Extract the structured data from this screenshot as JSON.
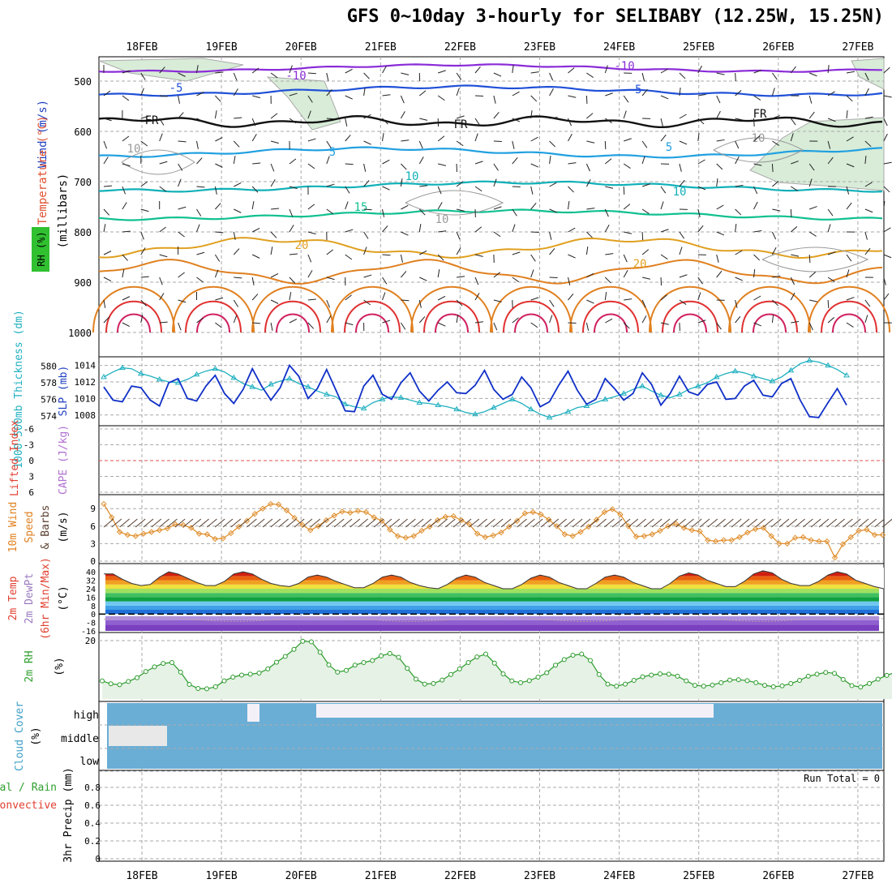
{
  "title": "GFS 0~10day 3-hourly for SELIBABY (12.25W, 15.25N)",
  "dates": [
    "18FEB",
    "19FEB",
    "20FEB",
    "21FEB",
    "22FEB",
    "23FEB",
    "24FEB",
    "25FEB",
    "26FEB",
    "27FEB"
  ],
  "colors": {
    "grid": "#999999",
    "rh_fill": "#d8ecd8",
    "temp_line": "#e04020",
    "cloud": "#6aaed6",
    "rh2m_line": "#2a9a2a",
    "dewpt": "#9a7ac0"
  },
  "panel1": {
    "ylabel_wind": "Wind (m/s)",
    "ylabel_temp": "Temperature (°C)",
    "ylabel_units": "(millibars)",
    "rh_badge": "RH (%)",
    "pressure_ticks": [
      "500",
      "600",
      "700",
      "800",
      "900",
      "1000"
    ],
    "contour_labels": [
      "-10",
      "-10",
      "-5",
      "-5",
      "FR",
      "FR",
      "FR",
      "5",
      "5",
      "10",
      "10",
      "15",
      "20",
      "20",
      "10",
      "10",
      "10"
    ]
  },
  "panel2": {
    "ylabel_thick": "1000-500mb Thickness (dm)",
    "ylabel_slp": "SLP (mb)",
    "thick_ticks": [
      "580",
      "578",
      "576",
      "574"
    ],
    "slp_ticks": [
      "1014",
      "1012",
      "1010",
      "1008"
    ]
  },
  "panel3": {
    "ylabel_li": "Lifted Index",
    "ylabel_cape": "CAPE (J/kg)",
    "ticks": [
      "-6",
      "-3",
      "0",
      "3",
      "6"
    ]
  },
  "panel4": {
    "ylabel": "10m Wind Speed & Barbs (m/s)",
    "ylabel_parts": [
      "10m Wind",
      "Speed",
      "& Barbs",
      "(m/s)"
    ],
    "ticks": [
      "9",
      "6",
      "3",
      "0"
    ]
  },
  "panel5": {
    "ylabel_parts": [
      "2m Temp",
      "2m DewPt",
      "(6hr Min/Max)",
      "(°C)"
    ],
    "ticks": [
      "40",
      "32",
      "24",
      "16",
      "8",
      "0",
      "-8",
      "-16"
    ]
  },
  "panel6": {
    "ylabel": "2m RH",
    "unit": "(%)",
    "ticks": [
      "20"
    ]
  },
  "panel7": {
    "ylabel": "Cloud Cover",
    "unit": "(%)",
    "levels": [
      "high",
      "middle",
      "low"
    ]
  },
  "panel8": {
    "ylabel_a": "Total / Rain",
    "ylabel_b": "Convective",
    "ylabel_c": "3hr Precip (mm)",
    "ticks": [
      "0.8",
      "0.6",
      "0.4",
      "0.2",
      "0"
    ],
    "run_total": "Run Total = 0"
  },
  "chart_data": [
    {
      "type": "line",
      "title": "1000-500mb Thickness (dm) / SLP (mb)",
      "x_labels": [
        "18FEB",
        "19FEB",
        "20FEB",
        "21FEB",
        "22FEB",
        "23FEB",
        "24FEB",
        "25FEB",
        "26FEB",
        "27FEB"
      ],
      "series": [
        {
          "name": "SLP (mb)",
          "values": [
            1011.4,
            1009.8,
            1009.6,
            1011.5,
            1011.3,
            1009.8,
            1009.1,
            1011.9,
            1012.4,
            1010.0,
            1009.7,
            1011.5,
            1012.8,
            1010.6,
            1009.4,
            1011.1,
            1013.6,
            1011.5,
            1009.8,
            1011.3,
            1014.0,
            1012.7,
            1010.0,
            1011.2,
            1013.5,
            1011.0,
            1008.5,
            1008.4,
            1011.5,
            1012.8,
            1010.5,
            1009.9,
            1011.9,
            1013.1,
            1010.9,
            1009.7,
            1011.0,
            1012.0,
            1010.7,
            1010.6,
            1011.6,
            1013.4,
            1011.1,
            1009.9,
            1010.5,
            1012.6,
            1011.3,
            1009.0,
            1009.6,
            1011.6,
            1013.3,
            1011.0,
            1009.3,
            1009.9,
            1012.4,
            1011.2,
            1009.8,
            1010.6,
            1013.1,
            1011.7,
            1009.2,
            1010.6,
            1012.7,
            1010.8,
            1010.4,
            1011.7,
            1012.0,
            1009.9,
            1010.0,
            1011.5,
            1012.2,
            1010.4,
            1010.2,
            1011.8,
            1012.4,
            1009.8,
            1007.8,
            1007.7,
            1009.5,
            1011.2,
            1009.2
          ]
        },
        {
          "name": "1000-500mb Thickness (dm)",
          "values": [
            578.7,
            579.3,
            579.8,
            579.7,
            579.1,
            578.8,
            578.4,
            578.1,
            578.0,
            578.4,
            579.0,
            579.4,
            579.7,
            579.3,
            578.6,
            577.9,
            577.5,
            577.1,
            577.8,
            578.2,
            578.5,
            577.9,
            577.5,
            577.0,
            576.6,
            576.3,
            575.4,
            575.1,
            574.9,
            575.6,
            576.0,
            576.3,
            576.2,
            575.9,
            575.6,
            575.5,
            575.3,
            575.1,
            574.8,
            574.4,
            574.2,
            574.5,
            575.0,
            575.5,
            576.0,
            575.5,
            574.8,
            574.2,
            573.8,
            574.1,
            574.5,
            575.0,
            575.2,
            575.6,
            576.0,
            576.3,
            576.7,
            577.2,
            577.6,
            577.0,
            576.5,
            576.2,
            576.6,
            577.2,
            577.6,
            578.0,
            578.7,
            579.1,
            579.4,
            579.2,
            578.8,
            578.5,
            578.2,
            578.7,
            579.5,
            580.3,
            580.7,
            580.5,
            580.1,
            579.6,
            578.9
          ]
        }
      ],
      "ylim_slp": [
        1007,
        1015
      ],
      "ylim_thickness": [
        573,
        581
      ]
    },
    {
      "type": "line",
      "title": "10m Wind Speed (m/s)",
      "series": [
        {
          "name": "10m Wind Speed",
          "values": [
            9.8,
            7.5,
            5.0,
            4.5,
            4.3,
            4.7,
            5.0,
            5.3,
            5.6,
            6.3,
            6.2,
            5.7,
            4.7,
            4.6,
            3.8,
            3.9,
            4.8,
            5.9,
            6.9,
            8.1,
            9.0,
            9.8,
            9.7,
            8.7,
            7.4,
            6.2,
            5.3,
            6.0,
            7.0,
            7.8,
            8.5,
            8.3,
            8.6,
            8.4,
            7.5,
            6.9,
            5.4,
            4.3,
            4.0,
            4.3,
            5.2,
            5.9,
            7.0,
            7.6,
            7.7,
            7.0,
            6.3,
            4.7,
            4.1,
            4.4,
            4.9,
            5.9,
            6.9,
            8.2,
            8.4,
            8.0,
            7.1,
            6.0,
            4.6,
            4.3,
            5.0,
            5.9,
            7.1,
            8.4,
            8.9,
            8.0,
            6.0,
            4.2,
            4.3,
            4.6,
            5.2,
            6.0,
            6.4,
            5.7,
            5.3,
            5.1,
            3.6,
            3.4,
            3.6,
            3.6,
            4.1,
            4.9,
            5.5,
            5.7,
            4.3,
            3.0,
            3.0,
            4.0,
            4.1,
            3.6,
            3.4,
            3.4,
            0.6,
            2.9,
            4.1,
            5.2,
            5.4,
            4.5,
            4.5
          ]
        }
      ],
      "ylim": [
        0,
        10
      ]
    },
    {
      "type": "area",
      "title": "2m RH (%)",
      "series": [
        {
          "name": "2m RH",
          "values": [
            6.2,
            5.2,
            4.9,
            6.0,
            7.3,
            9.4,
            11.0,
            12.2,
            12.5,
            9.2,
            5.0,
            3.6,
            3.5,
            4.2,
            6.2,
            7.5,
            8.2,
            8.5,
            8.9,
            10.3,
            12.6,
            14.6,
            17.0,
            19.8,
            19.6,
            16.0,
            11.7,
            9.2,
            9.8,
            11.6,
            12.5,
            13.2,
            14.8,
            15.6,
            14.3,
            10.5,
            6.8,
            5.1,
            5.3,
            6.5,
            8.4,
            10.3,
            12.5,
            14.4,
            15.4,
            12.3,
            8.6,
            6.2,
            5.6,
            6.3,
            7.5,
            9.0,
            11.6,
            13.5,
            15.0,
            15.4,
            13.2,
            8.4,
            5.1,
            4.4,
            5.1,
            6.4,
            7.6,
            8.2,
            8.6,
            8.5,
            7.8,
            6.2,
            4.7,
            4.4,
            4.8,
            5.6,
            6.5,
            6.6,
            6.3,
            5.6,
            4.7,
            4.2,
            4.5,
            5.3,
            6.4,
            7.8,
            8.5,
            9.1,
            8.8,
            6.7,
            4.6,
            4.1,
            5.3,
            6.8,
            8.1,
            9.2
          ]
        }
      ],
      "ylim": [
        0,
        22
      ]
    },
    {
      "type": "area",
      "title": "2m Temp (°C)",
      "series": [
        {
          "name": "2m Temp",
          "values": [
            38,
            38,
            33,
            29,
            27,
            28,
            35,
            40,
            38,
            34,
            30,
            27,
            27,
            31,
            38,
            40,
            38,
            33,
            29,
            27,
            26,
            29,
            35,
            37,
            35,
            31,
            28,
            25,
            25,
            29,
            35,
            37,
            35,
            30,
            27,
            25,
            24,
            28,
            34,
            37,
            35,
            30,
            27,
            24,
            24,
            28,
            34,
            37,
            35,
            30,
            27,
            24,
            24,
            29,
            35,
            37,
            35,
            30,
            27,
            24,
            24,
            29,
            36,
            39,
            37,
            32,
            29,
            26,
            26,
            31,
            38,
            41,
            39,
            33,
            29,
            27,
            27,
            31,
            37,
            40,
            38,
            32,
            29,
            26,
            24
          ]
        }
      ],
      "ylim": [
        -16,
        44
      ]
    },
    {
      "type": "bar",
      "title": "Precip",
      "values": [],
      "ylim": [
        0,
        1
      ]
    }
  ]
}
